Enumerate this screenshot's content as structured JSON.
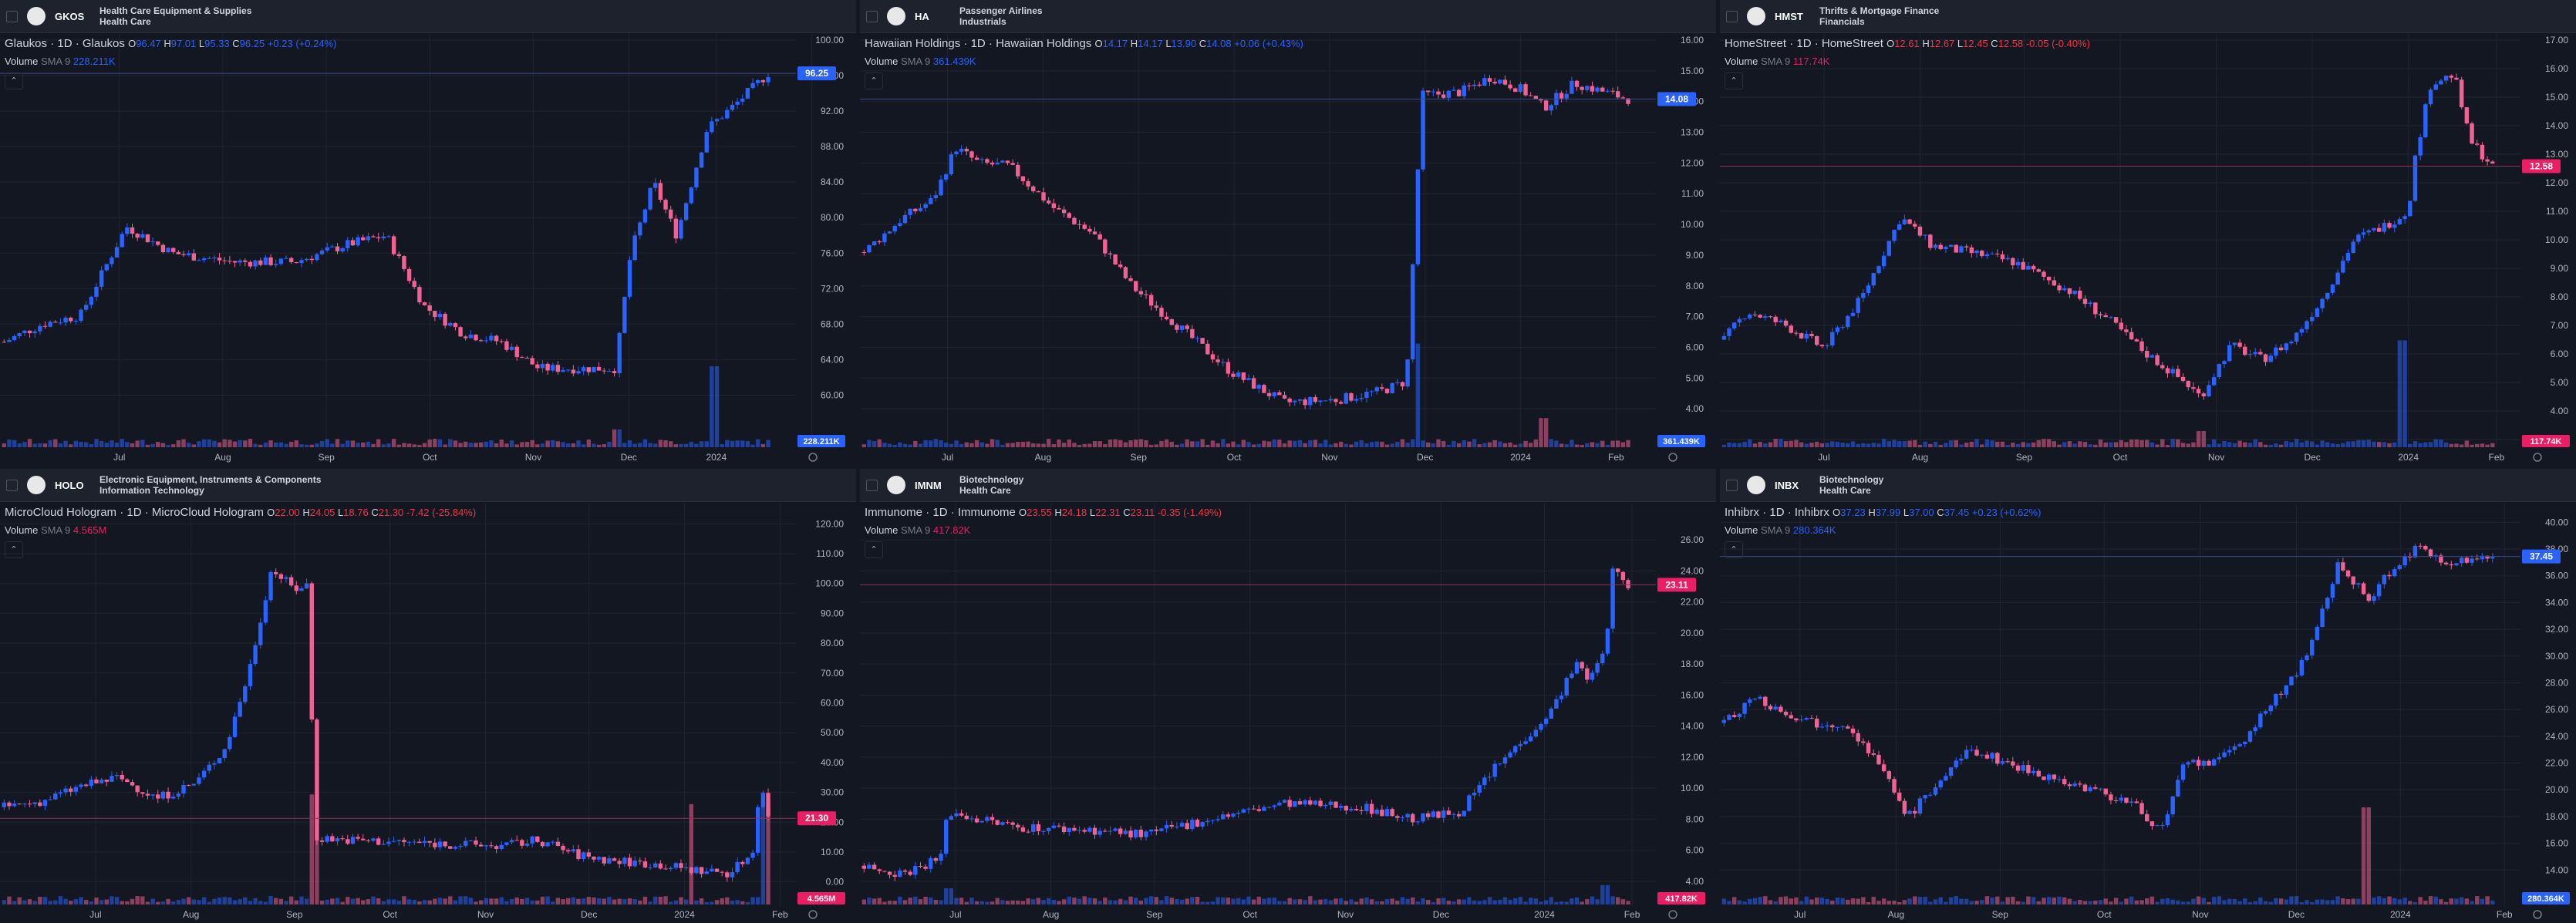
{
  "theme": {
    "bg": "#131722",
    "header_bg": "#1e222d",
    "up": "#2962ff",
    "down": "#f06292",
    "grid": "#1f2430"
  },
  "chart_data": [
    {
      "type": "candlestick",
      "symbol": "GKOS",
      "sector": "Health Care Equipment & Supplies",
      "industry": "Health Care",
      "title": "Glaukos · 1D · Glaukos",
      "ohlc": {
        "o": "96.47",
        "h": "97.01",
        "l": "95.33",
        "c": "96.25",
        "chg": "+0.23 (+0.24%)"
      },
      "volume_label": "Volume",
      "sma_label": "SMA 9",
      "volume_value": "228.211K",
      "last_price": 96.25,
      "last_label": "96.25",
      "dir": "up",
      "ylim": [
        55,
        100
      ],
      "y_ticks": [
        "100.00",
        "96.00",
        "92.00",
        "88.00",
        "84.00",
        "80.00",
        "76.00",
        "72.00",
        "68.00",
        "64.00",
        "60.00"
      ],
      "x_ticks": [
        "Jul",
        "Aug",
        "Sep",
        "Oct",
        "Nov",
        "Dec",
        "2024",
        "Feb"
      ],
      "x_tick_pos": [
        0.15,
        0.28,
        0.41,
        0.54,
        0.67,
        0.79,
        0.9,
        1.02
      ],
      "path": [
        [
          0,
          66
        ],
        [
          0.05,
          68
        ],
        [
          0.1,
          69
        ],
        [
          0.16,
          79
        ],
        [
          0.22,
          76
        ],
        [
          0.3,
          75
        ],
        [
          0.38,
          75
        ],
        [
          0.45,
          77
        ],
        [
          0.5,
          78
        ],
        [
          0.55,
          70
        ],
        [
          0.6,
          67
        ],
        [
          0.65,
          66
        ],
        [
          0.7,
          63
        ],
        [
          0.75,
          63
        ],
        [
          0.8,
          63
        ],
        [
          0.82,
          76
        ],
        [
          0.85,
          84
        ],
        [
          0.88,
          78
        ],
        [
          0.92,
          90
        ],
        [
          0.96,
          93
        ],
        [
          1.0,
          96.25
        ]
      ],
      "vol_spikes": [
        [
          0.8,
          0.55
        ],
        [
          0.93,
          2.5
        ]
      ]
    },
    {
      "type": "candlestick",
      "symbol": "HA",
      "sector": "Passenger Airlines",
      "industry": "Industrials",
      "title": "Hawaiian Holdings · 1D · Hawaiian Holdings",
      "ohlc": {
        "o": "14.17",
        "h": "14.17",
        "l": "13.90",
        "c": "14.08",
        "chg": "+0.06 (+0.43%)"
      },
      "volume_label": "Volume",
      "sma_label": "SMA 9",
      "volume_value": "361.439K",
      "last_price": 14.08,
      "last_label": "14.08",
      "dir": "up",
      "ylim": [
        3,
        16
      ],
      "y_ticks": [
        "16.00",
        "15.00",
        "14.00",
        "13.00",
        "12.00",
        "11.00",
        "10.00",
        "9.00",
        "8.00",
        "7.00",
        "6.00",
        "5.00",
        "4.00"
      ],
      "x_ticks": [
        "Jul",
        "Aug",
        "Sep",
        "Oct",
        "Nov",
        "Dec",
        "2024",
        "Feb"
      ],
      "x_tick_pos": [
        0.11,
        0.23,
        0.35,
        0.47,
        0.59,
        0.71,
        0.83,
        0.95
      ],
      "path": [
        [
          0,
          9.1
        ],
        [
          0.05,
          10.2
        ],
        [
          0.09,
          10.8
        ],
        [
          0.12,
          12.5
        ],
        [
          0.15,
          12.0
        ],
        [
          0.19,
          11.9
        ],
        [
          0.25,
          10.5
        ],
        [
          0.3,
          9.7
        ],
        [
          0.35,
          8.0
        ],
        [
          0.42,
          6.5
        ],
        [
          0.48,
          5.2
        ],
        [
          0.55,
          4.2
        ],
        [
          0.62,
          4.3
        ],
        [
          0.68,
          4.6
        ],
        [
          0.71,
          4.9
        ],
        [
          0.73,
          14.2
        ],
        [
          0.78,
          14.3
        ],
        [
          0.82,
          14.8
        ],
        [
          0.86,
          14.4
        ],
        [
          0.89,
          13.8
        ],
        [
          0.93,
          14.6
        ],
        [
          1.0,
          14.08
        ]
      ],
      "vol_spikes": [
        [
          0.725,
          3.2
        ],
        [
          0.89,
          0.9
        ]
      ]
    },
    {
      "type": "candlestick",
      "symbol": "HMST",
      "sector": "Thrifts & Mortgage Finance",
      "industry": "Financials",
      "title": "HomeStreet · 1D · HomeStreet",
      "ohlc": {
        "o": "12.61",
        "h": "12.67",
        "l": "12.45",
        "c": "12.58",
        "chg": "-0.05 (-0.40%)"
      },
      "volume_label": "Volume",
      "sma_label": "SMA 9",
      "volume_value": "117.74K",
      "last_price": 12.58,
      "last_label": "12.58",
      "dir": "down",
      "ylim": [
        3,
        17
      ],
      "y_ticks": [
        "17.00",
        "16.00",
        "15.00",
        "14.00",
        "13.00",
        "12.00",
        "11.00",
        "10.00",
        "9.00",
        "8.00",
        "7.00",
        "6.00",
        "5.00",
        "4.00",
        "3.00"
      ],
      "x_ticks": [
        "Jul",
        "Aug",
        "Sep",
        "Oct",
        "Nov",
        "Dec",
        "2024",
        "Feb"
      ],
      "x_tick_pos": [
        0.13,
        0.25,
        0.38,
        0.5,
        0.62,
        0.74,
        0.86,
        0.97
      ],
      "path": [
        [
          0,
          6.5
        ],
        [
          0.03,
          7.5
        ],
        [
          0.08,
          7.0
        ],
        [
          0.13,
          6.2
        ],
        [
          0.18,
          8.0
        ],
        [
          0.23,
          10.8
        ],
        [
          0.27,
          9.8
        ],
        [
          0.33,
          9.5
        ],
        [
          0.38,
          9.2
        ],
        [
          0.45,
          8.2
        ],
        [
          0.5,
          7.2
        ],
        [
          0.55,
          6.0
        ],
        [
          0.6,
          5.0
        ],
        [
          0.62,
          4.5
        ],
        [
          0.66,
          6.3
        ],
        [
          0.7,
          5.8
        ],
        [
          0.74,
          6.5
        ],
        [
          0.78,
          8.0
        ],
        [
          0.82,
          10.0
        ],
        [
          0.86,
          10.5
        ],
        [
          0.89,
          11.0
        ],
        [
          0.9,
          13.0
        ],
        [
          0.92,
          15.5
        ],
        [
          0.95,
          15.8
        ],
        [
          0.97,
          13.5
        ],
        [
          1.0,
          12.58
        ]
      ],
      "vol_spikes": [
        [
          0.62,
          0.5
        ],
        [
          0.885,
          3.3
        ]
      ]
    },
    {
      "type": "candlestick",
      "symbol": "HOLO",
      "sector": "Electronic Equipment, Instruments & Components",
      "industry": "Information Technology",
      "title": "MicroCloud Hologram · 1D · MicroCloud Hologram",
      "ohlc": {
        "o": "22.00",
        "h": "24.05",
        "l": "18.76",
        "c": "21.30",
        "chg": "-7.42 (-25.84%)"
      },
      "volume_label": "Volume",
      "sma_label": "SMA 9",
      "volume_value": "4.565M",
      "last_price": 21.3,
      "last_label": "21.30",
      "dir": "down",
      "ylim": [
        -5,
        125
      ],
      "y_ticks": [
        "120.00",
        "110.00",
        "100.00",
        "90.00",
        "80.00",
        "70.00",
        "60.00",
        "50.00",
        "40.00",
        "30.00",
        "20.00",
        "10.00",
        "0.00"
      ],
      "x_ticks": [
        "Jul",
        "Aug",
        "Sep",
        "Oct",
        "Nov",
        "Dec",
        "2024",
        "Feb"
      ],
      "x_tick_pos": [
        0.12,
        0.24,
        0.37,
        0.49,
        0.61,
        0.74,
        0.86,
        0.98
      ],
      "path": [
        [
          0,
          25
        ],
        [
          0.05,
          27
        ],
        [
          0.1,
          32
        ],
        [
          0.15,
          35
        ],
        [
          0.2,
          28
        ],
        [
          0.25,
          33
        ],
        [
          0.29,
          45
        ],
        [
          0.32,
          70
        ],
        [
          0.35,
          105
        ],
        [
          0.38,
          98
        ],
        [
          0.4,
          100
        ],
        [
          0.405,
          15
        ],
        [
          0.45,
          14
        ],
        [
          0.55,
          13
        ],
        [
          0.65,
          12
        ],
        [
          0.7,
          14
        ],
        [
          0.75,
          9
        ],
        [
          0.8,
          7
        ],
        [
          0.85,
          6
        ],
        [
          0.9,
          4
        ],
        [
          0.95,
          3
        ],
        [
          0.98,
          10
        ],
        [
          0.99,
          35
        ],
        [
          1.0,
          21.3
        ]
      ],
      "vol_spikes": [
        [
          0.405,
          3.4
        ],
        [
          0.9,
          3.1
        ],
        [
          0.995,
          3.0
        ]
      ]
    },
    {
      "type": "candlestick",
      "symbol": "IMNM",
      "sector": "Biotechnology",
      "industry": "Health Care",
      "title": "Immunome · 1D · Immunome",
      "ohlc": {
        "o": "23.55",
        "h": "24.18",
        "l": "22.31",
        "c": "23.11",
        "chg": "-0.35 (-1.49%)"
      },
      "volume_label": "Volume",
      "sma_label": "SMA 9",
      "volume_value": "417.82K",
      "last_price": 23.11,
      "last_label": "23.11",
      "dir": "down",
      "ylim": [
        3,
        28
      ],
      "y_ticks": [
        "26.00",
        "24.00",
        "22.00",
        "20.00",
        "18.00",
        "16.00",
        "14.00",
        "12.00",
        "10.00",
        "8.00",
        "6.00",
        "4.00"
      ],
      "x_ticks": [
        "Jul",
        "Aug",
        "Sep",
        "Oct",
        "Nov",
        "Dec",
        "2024",
        "Feb"
      ],
      "x_tick_pos": [
        0.12,
        0.24,
        0.37,
        0.49,
        0.61,
        0.73,
        0.86,
        0.97
      ],
      "path": [
        [
          0,
          5
        ],
        [
          0.05,
          4.5
        ],
        [
          0.1,
          5.5
        ],
        [
          0.11,
          8.5
        ],
        [
          0.15,
          8.0
        ],
        [
          0.2,
          7.5
        ],
        [
          0.3,
          7.3
        ],
        [
          0.37,
          7.0
        ],
        [
          0.45,
          8.0
        ],
        [
          0.55,
          9.0
        ],
        [
          0.65,
          8.8
        ],
        [
          0.72,
          8.0
        ],
        [
          0.78,
          8.5
        ],
        [
          0.82,
          11
        ],
        [
          0.86,
          13
        ],
        [
          0.9,
          15
        ],
        [
          0.93,
          18
        ],
        [
          0.95,
          17
        ],
        [
          0.97,
          19
        ],
        [
          0.98,
          24
        ],
        [
          1.0,
          23.11
        ]
      ],
      "vol_spikes": [
        [
          0.11,
          0.5
        ],
        [
          0.97,
          0.6
        ]
      ]
    },
    {
      "type": "candlestick",
      "symbol": "INBX",
      "sector": "Biotechnology",
      "industry": "Health Care",
      "title": "Inhibrx · 1D · Inhibrx",
      "ohlc": {
        "o": "37.23",
        "h": "37.99",
        "l": "37.00",
        "c": "37.45",
        "chg": "+0.23 (+0.62%)"
      },
      "volume_label": "Volume",
      "sma_label": "SMA 9",
      "volume_value": "280.364K",
      "last_price": 37.45,
      "last_label": "37.45",
      "dir": "up",
      "ylim": [
        12,
        41
      ],
      "y_ticks": [
        "40.00",
        "38.00",
        "36.00",
        "34.00",
        "32.00",
        "30.00",
        "28.00",
        "26.00",
        "24.00",
        "22.00",
        "20.00",
        "18.00",
        "16.00",
        "14.00"
      ],
      "x_ticks": [
        "Jul",
        "Aug",
        "Sep",
        "Oct",
        "Nov",
        "Dec",
        "2024",
        "Feb"
      ],
      "x_tick_pos": [
        0.1,
        0.22,
        0.35,
        0.48,
        0.6,
        0.72,
        0.85,
        0.98
      ],
      "path": [
        [
          0,
          25
        ],
        [
          0.04,
          27
        ],
        [
          0.07,
          26
        ],
        [
          0.12,
          25
        ],
        [
          0.16,
          25
        ],
        [
          0.2,
          22
        ],
        [
          0.24,
          18
        ],
        [
          0.27,
          20
        ],
        [
          0.32,
          23
        ],
        [
          0.37,
          22
        ],
        [
          0.42,
          21
        ],
        [
          0.48,
          20
        ],
        [
          0.53,
          19
        ],
        [
          0.57,
          17
        ],
        [
          0.6,
          22
        ],
        [
          0.64,
          22
        ],
        [
          0.68,
          24
        ],
        [
          0.72,
          27
        ],
        [
          0.76,
          30
        ],
        [
          0.8,
          37
        ],
        [
          0.84,
          34
        ],
        [
          0.86,
          36
        ],
        [
          0.9,
          38
        ],
        [
          0.95,
          37
        ],
        [
          1.0,
          37.45
        ]
      ],
      "vol_spikes": [
        [
          0.835,
          3.0
        ]
      ]
    }
  ]
}
